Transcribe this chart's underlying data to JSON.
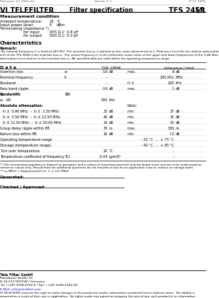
{
  "header_left": "Filename: tfs 245b.doc",
  "header_center": "Version 1.3",
  "header_right": "21.07.2004",
  "company": "VI TELEFILTER",
  "doc_title": "Filter specification",
  "part_number": "TFS 245B",
  "page": "1/5",
  "mc_title": "Measurement condition",
  "mc_ambient_label": "Ambient temperature:",
  "mc_ambient_val": "23",
  "mc_ambient_unit": "°C",
  "mc_input_label": "Input power level:",
  "mc_input_val": "0",
  "mc_input_unit": "dBm",
  "mc_term_label": "Terminating impedance *)",
  "mc_input2_label": "for input",
  "mc_input2_val": "955 Ω //  0.8 pF",
  "mc_output_label": "for output",
  "mc_output_val": "900 Ω //  0.3 pF",
  "char_title": "Characteristics",
  "remark_label": "Remark:",
  "remark_line1": "The nominal frequency f₀ is fixed at 245.952. The insertion loss a₀ is defined as loss value determined at f₀. Reference level for the relative attenuation",
  "remark_line2": "aᵣ(f) of the TFS 245B is the insertion loss a₀. The centre frequency f₀ is the arithmetic mean value of the upper and lower frequencies of the 3-dB filter",
  "remark_line3": "attenuation level relative to the insertion loss a₀. All specified data are valid within the operating temperature range.",
  "col_data": "D a t a",
  "col_typ": "typ. value",
  "col_tol": "tolerance / limit",
  "rows": [
    {
      "label": "Insertion loss",
      "sym": "a₀",
      "tv": "5.6",
      "tu": "dB",
      "tp": "max.",
      "lv": "8",
      "lu": "dB",
      "bold": false,
      "indent": false
    },
    {
      "label": "Nominal frequency",
      "sym": "f₀",
      "tv": "-",
      "tu": "",
      "tp": "",
      "lv": "245.952",
      "lu": "MHz",
      "bold": false,
      "indent": false
    },
    {
      "label": "Passband",
      "sym": "",
      "tv": "-",
      "tu": "",
      "tp": "f₀ ±",
      "lv": "200",
      "lu": "kHz",
      "bold": false,
      "indent": false
    },
    {
      "label": "Pass band ripple",
      "sym": "",
      "tv": "0.4",
      "tu": "dB",
      "tp": "max.",
      "lv": "1",
      "lu": "dB",
      "bold": false,
      "indent": false
    },
    {
      "label": "Bandwidth",
      "sym": "BW",
      "tv": "",
      "tu": "",
      "tp": "",
      "lv": "",
      "lu": "",
      "bold": true,
      "indent": false
    },
    {
      "label": "≥   dB",
      "sym": "",
      "tv": "800",
      "tu": "kHz",
      "tp": "",
      "lv": "",
      "lu": "",
      "bold": false,
      "indent": false
    },
    {
      "label": "Absolute attenuation:",
      "sym": "",
      "tv": "",
      "tu": "",
      "tp": "Ratio:",
      "lv": "",
      "lu": "",
      "bold": true,
      "indent": false
    },
    {
      "label": "f₀ ±  0.90 MHz  –  f₀ ±  2.50 MHz",
      "sym": "",
      "tv": "30",
      "tu": "dB",
      "tp": "min.",
      "lv": "27",
      "lu": "dB",
      "bold": false,
      "indent": true
    },
    {
      "label": "f₀ ±  2.50 MHz  –  f₀ ± 12.50 MHz",
      "sym": "",
      "tv": "40",
      "tu": "dB",
      "tp": "min.",
      "lv": "32",
      "lu": "dB",
      "bold": false,
      "indent": true
    },
    {
      "label": "f₀ ± 12.50 MHz  –  f₀ ± 50.00 MHz",
      "sym": "",
      "tv": "14",
      "tu": "dB",
      "tp": "min.",
      "lv": "50",
      "lu": "dB",
      "bold": false,
      "indent": true
    },
    {
      "label": "Group delay ripple within PB",
      "sym": "",
      "tv": "70",
      "tu": "ns",
      "tp": "max.",
      "lv": "300",
      "lu": "ns",
      "bold": false,
      "indent": false
    },
    {
      "label": "Return loss within PB",
      "sym": "",
      "tv": "16",
      "tu": "dB",
      "tp": "min.",
      "lv": "7.2",
      "lu": "dB",
      "bold": false,
      "indent": false
    },
    {
      "label": "Operating temperature range",
      "sym": "",
      "tv": "",
      "tu": "",
      "tp": "",
      "lv": "- 25 °C  ...  + 75 °C",
      "lu": "",
      "bold": false,
      "indent": false
    },
    {
      "label": "Storage (temperature range)",
      "sym": "",
      "tv": "",
      "tu": "",
      "tp": "",
      "lv": "- 40 °C  ...  + 85 °C",
      "lu": "",
      "bold": false,
      "indent": false
    },
    {
      "label": "Turn over temperature",
      "sym": "",
      "tv": "20",
      "tu": "°C",
      "tp": "",
      "lv": "-",
      "lu": "",
      "bold": false,
      "indent": false
    },
    {
      "label": "Temperature coefficient of frequency",
      "sym": "TC₀",
      "tv": "-0.04",
      "tu": "ppm/K²",
      "tp": "",
      "lv": "-",
      "lu": "",
      "bold": false,
      "indent": false
    }
  ],
  "fn1_line1": "*) The terminating impedances depend on parasitics and p-values of matching elements and the board used, and are to be understood as",
  "fn1_line2": "reference values only. Should there be additional questions do not hesitate to ask for an application note or contact our design team.",
  "fn2": "**) a₀(MHz) = Suppression(f) of - f₀ ± f₀/n (MHz)",
  "gen_label": "Generated:",
  "chk_label": "Checked / Approved:",
  "foot_company": "Tele Filter GmbH",
  "foot_addr1": "Potsdamer Straße 18",
  "foot_addr2": "D-14 513 TELTOW / Germany",
  "foot_tel": "Tel: (+49) 3328 4764-0 / Fax: (+49) 3328 4764-30",
  "foot_email": "E-Mail: info@telefilter.com",
  "foot_disc1": "VI TELEFILTER reserves the right to make changes to the product(s) and/or information contained herein without notice.  No liability is",
  "foot_disc2": "assumed as a result of their use or application.  No rights under any patent accompany the sale of any such product(s) or information."
}
